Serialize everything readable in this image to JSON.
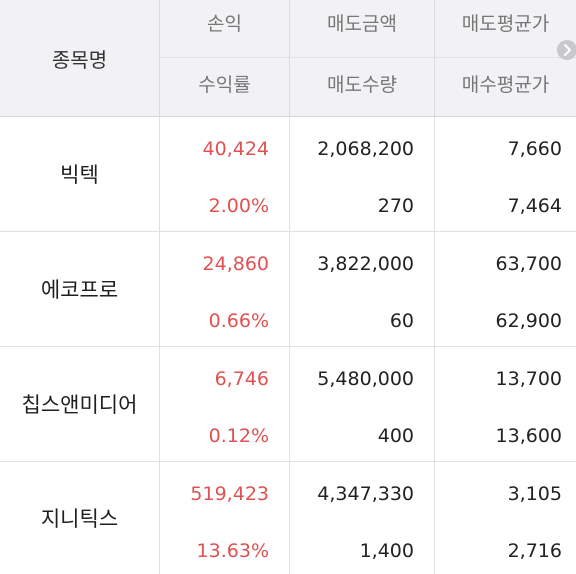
{
  "header": {
    "col_name": "종목명",
    "col2_top": "손익",
    "col2_bottom": "수익률",
    "col3_top": "매도금액",
    "col3_bottom": "매도수량",
    "col4_top": "매도평균가",
    "col4_bottom": "매수평균가"
  },
  "rows": [
    {
      "name": "빅텍",
      "profit": "40,424",
      "rate": "2.00%",
      "sell_amount": "2,068,200",
      "sell_qty": "270",
      "sell_avg": "7,660",
      "buy_avg": "7,464"
    },
    {
      "name": "에코프로",
      "profit": "24,860",
      "rate": "0.66%",
      "sell_amount": "3,822,000",
      "sell_qty": "60",
      "sell_avg": "63,700",
      "buy_avg": "62,900"
    },
    {
      "name": "칩스앤미디어",
      "profit": "6,746",
      "rate": "0.12%",
      "sell_amount": "5,480,000",
      "sell_qty": "400",
      "sell_avg": "13,700",
      "buy_avg": "13,600"
    },
    {
      "name": "지니틱스",
      "profit": "519,423",
      "rate": "13.63%",
      "sell_amount": "4,347,330",
      "sell_qty": "1,400",
      "sell_avg": "3,105",
      "buy_avg": "2,716"
    }
  ],
  "colors": {
    "positive": "#e05252",
    "header_bg": "#f2f2f4"
  },
  "icons": {
    "scroll": "chevron-right-icon"
  }
}
